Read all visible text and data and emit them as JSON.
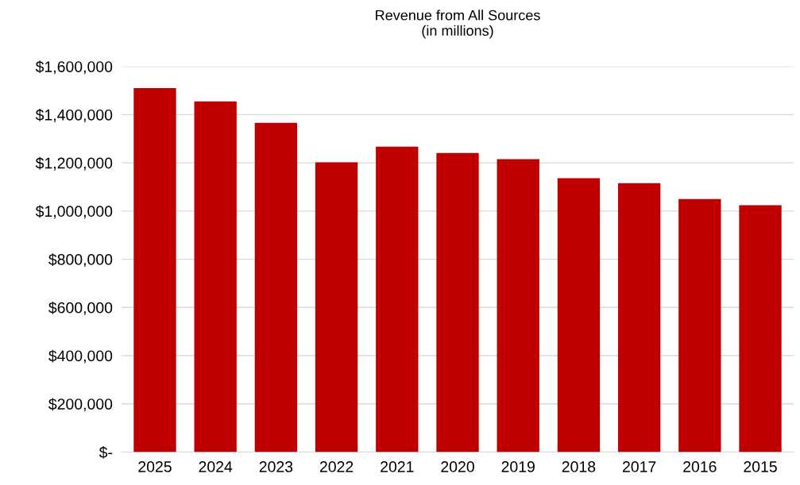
{
  "chart_data": {
    "type": "bar",
    "title": "Revenue from All Sources\n(in millions)",
    "categories": [
      "2025",
      "2024",
      "2023",
      "2022",
      "2021",
      "2020",
      "2019",
      "2018",
      "2017",
      "2016",
      "2015"
    ],
    "values": [
      1510000,
      1455000,
      1366000,
      1202000,
      1267000,
      1241000,
      1215000,
      1136000,
      1116000,
      1050000,
      1024000
    ],
    "color": "#c00000",
    "ylim": [
      0,
      1600000
    ],
    "yticks": [
      {
        "value": 0,
        "label": "$-"
      },
      {
        "value": 200000,
        "label": "$200,000"
      },
      {
        "value": 400000,
        "label": "$400,000"
      },
      {
        "value": 600000,
        "label": "$600,000"
      },
      {
        "value": 800000,
        "label": "$800,000"
      },
      {
        "value": 1000000,
        "label": "$1,000,000"
      },
      {
        "value": 1200000,
        "label": "$1,200,000"
      },
      {
        "value": 1400000,
        "label": "$1,400,000"
      },
      {
        "value": 1600000,
        "label": "$1,600,000"
      }
    ],
    "grid": "y"
  }
}
